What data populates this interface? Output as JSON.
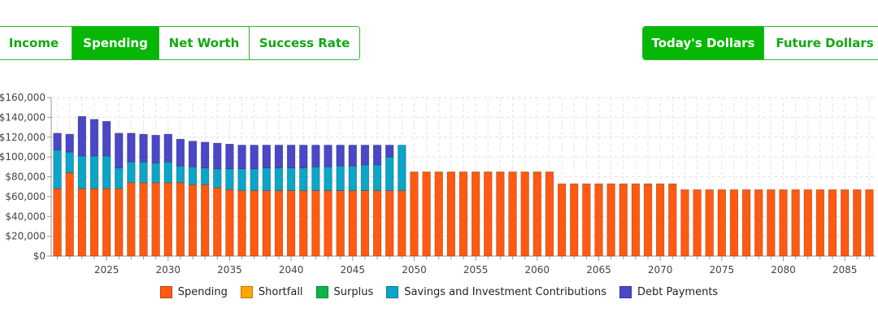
{
  "tabs": {
    "view": [
      {
        "label": "Income",
        "active": false
      },
      {
        "label": "Spending",
        "active": true
      },
      {
        "label": "Net Worth",
        "active": false
      },
      {
        "label": "Success Rate",
        "active": false
      }
    ],
    "dollars": [
      {
        "label": "Today's Dollars",
        "active": true
      },
      {
        "label": "Future Dollars",
        "active": false
      }
    ]
  },
  "chart_data": {
    "type": "bar",
    "stacked": true,
    "grid": true,
    "x_start": 2021,
    "x_end": 2087,
    "ylim": [
      0,
      160000
    ],
    "y_ticks": [
      "$160,000",
      "$140,000",
      "$120,000",
      "$100,000",
      "$80,000",
      "$60,000",
      "$40,000",
      "$20,000",
      "$0"
    ],
    "x_tick_labels": [
      "2025",
      "2030",
      "2035",
      "2040",
      "2045",
      "2050",
      "2055",
      "2060",
      "2065",
      "2070",
      "2075",
      "2080",
      "2085"
    ],
    "legend_position": "bottom",
    "series": [
      {
        "name": "Spending",
        "color": "#ff5a0f",
        "values": [
          68000,
          84000,
          68000,
          68000,
          68000,
          68000,
          74000,
          74000,
          74000,
          74000,
          74000,
          72000,
          72000,
          69000,
          67000,
          66000,
          66000,
          66000,
          66000,
          66000,
          66000,
          66000,
          66000,
          66000,
          66000,
          66000,
          66000,
          66000,
          66000,
          85000,
          85000,
          85000,
          85000,
          85000,
          85000,
          85000,
          85000,
          85000,
          85000,
          85000,
          85000,
          73000,
          73000,
          73000,
          73000,
          73000,
          73000,
          73000,
          73000,
          73000,
          73000,
          67000,
          67000,
          67000,
          67000,
          67000,
          67000,
          67000,
          67000,
          67000,
          67000,
          67000,
          67000,
          67000,
          67000,
          67000,
          67000
        ]
      },
      {
        "name": "Shortfall",
        "color": "#ffa500",
        "values": []
      },
      {
        "name": "Surplus",
        "color": "#0bb54a",
        "values": []
      },
      {
        "name": "Savings and Investment Contributions",
        "color": "#0aa5c7",
        "values": [
          39000,
          21000,
          33000,
          33000,
          33000,
          21000,
          21000,
          21000,
          20000,
          21000,
          17000,
          18000,
          17000,
          19000,
          21000,
          22000,
          22000,
          23000,
          23000,
          23000,
          23000,
          24000,
          24000,
          25000,
          25000,
          26000,
          26000,
          34000,
          46000,
          0,
          0,
          0,
          0,
          0,
          0,
          0,
          0,
          0,
          0,
          0,
          0,
          0,
          0,
          0,
          0,
          0,
          0,
          0,
          0,
          0,
          0,
          0,
          0,
          0,
          0,
          0,
          0,
          0,
          0,
          0,
          0,
          0,
          0,
          0,
          0,
          0,
          0
        ]
      },
      {
        "name": "Debt Payments",
        "color": "#4a47c8",
        "values": [
          17000,
          18000,
          40000,
          37000,
          35000,
          35000,
          29000,
          28000,
          28000,
          28000,
          27000,
          26000,
          26000,
          26000,
          25000,
          24000,
          24000,
          23000,
          23000,
          23000,
          23000,
          22000,
          22000,
          21000,
          21000,
          20000,
          20000,
          12000,
          0,
          0,
          0,
          0,
          0,
          0,
          0,
          0,
          0,
          0,
          0,
          0,
          0,
          0,
          0,
          0,
          0,
          0,
          0,
          0,
          0,
          0,
          0,
          0,
          0,
          0,
          0,
          0,
          0,
          0,
          0,
          0,
          0,
          0,
          0,
          0,
          0,
          0,
          0
        ]
      }
    ]
  }
}
